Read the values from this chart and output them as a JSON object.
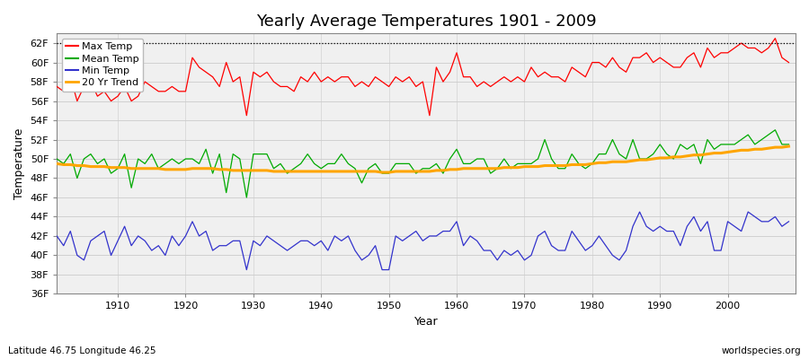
{
  "title": "Yearly Average Temperatures 1901 - 2009",
  "xlabel": "Year",
  "ylabel": "Temperature",
  "subtitle_lat": "Latitude 46.75 Longitude 46.25",
  "watermark": "worldspecies.org",
  "bg_color": "#ffffff",
  "plot_bg_color": "#f0f0f0",
  "years": [
    1901,
    1902,
    1903,
    1904,
    1905,
    1906,
    1907,
    1908,
    1909,
    1910,
    1911,
    1912,
    1913,
    1914,
    1915,
    1916,
    1917,
    1918,
    1919,
    1920,
    1921,
    1922,
    1923,
    1924,
    1925,
    1926,
    1927,
    1928,
    1929,
    1930,
    1931,
    1932,
    1933,
    1934,
    1935,
    1936,
    1937,
    1938,
    1939,
    1940,
    1941,
    1942,
    1943,
    1944,
    1945,
    1946,
    1947,
    1948,
    1949,
    1950,
    1951,
    1952,
    1953,
    1954,
    1955,
    1956,
    1957,
    1958,
    1959,
    1960,
    1961,
    1962,
    1963,
    1964,
    1965,
    1966,
    1967,
    1968,
    1969,
    1970,
    1971,
    1972,
    1973,
    1974,
    1975,
    1976,
    1977,
    1978,
    1979,
    1980,
    1981,
    1982,
    1983,
    1984,
    1985,
    1986,
    1987,
    1988,
    1989,
    1990,
    1991,
    1992,
    1993,
    1994,
    1995,
    1996,
    1997,
    1998,
    1999,
    2000,
    2001,
    2002,
    2003,
    2004,
    2005,
    2006,
    2007,
    2008,
    2009
  ],
  "max_temp": [
    57.5,
    57.0,
    58.5,
    56.0,
    57.5,
    58.0,
    56.5,
    57.0,
    56.0,
    56.5,
    57.5,
    56.0,
    56.5,
    58.0,
    57.5,
    57.0,
    57.0,
    57.5,
    57.0,
    57.0,
    60.5,
    59.5,
    59.0,
    58.5,
    57.5,
    60.0,
    58.0,
    58.5,
    54.5,
    59.0,
    58.5,
    59.0,
    58.0,
    57.5,
    57.5,
    57.0,
    58.5,
    58.0,
    59.0,
    58.0,
    58.5,
    58.0,
    58.5,
    58.5,
    57.5,
    58.0,
    57.5,
    58.5,
    58.0,
    57.5,
    58.5,
    58.0,
    58.5,
    57.5,
    58.0,
    54.5,
    59.5,
    58.0,
    59.0,
    61.0,
    58.5,
    58.5,
    57.5,
    58.0,
    57.5,
    58.0,
    58.5,
    58.0,
    58.5,
    58.0,
    59.5,
    58.5,
    59.0,
    58.5,
    58.5,
    58.0,
    59.5,
    59.0,
    58.5,
    60.0,
    60.0,
    59.5,
    60.5,
    59.5,
    59.0,
    60.5,
    60.5,
    61.0,
    60.0,
    60.5,
    60.0,
    59.5,
    59.5,
    60.5,
    61.0,
    59.5,
    61.5,
    60.5,
    61.0,
    61.0,
    61.5,
    62.0,
    61.5,
    61.5,
    61.0,
    61.5,
    62.5,
    60.5,
    60.0
  ],
  "mean_temp": [
    50.0,
    49.5,
    50.5,
    48.0,
    50.0,
    50.5,
    49.5,
    50.0,
    48.5,
    49.0,
    50.5,
    47.0,
    50.0,
    49.5,
    50.5,
    49.0,
    49.5,
    50.0,
    49.5,
    50.0,
    50.0,
    49.5,
    51.0,
    48.5,
    50.5,
    46.5,
    50.5,
    50.0,
    46.0,
    50.5,
    50.5,
    50.5,
    49.0,
    49.5,
    48.5,
    49.0,
    49.5,
    50.5,
    49.5,
    49.0,
    49.5,
    49.5,
    50.5,
    49.5,
    49.0,
    47.5,
    49.0,
    49.5,
    48.5,
    48.5,
    49.5,
    49.5,
    49.5,
    48.5,
    49.0,
    49.0,
    49.5,
    48.5,
    50.0,
    51.0,
    49.5,
    49.5,
    50.0,
    50.0,
    48.5,
    49.0,
    50.0,
    49.0,
    49.5,
    49.5,
    49.5,
    50.0,
    52.0,
    50.0,
    49.0,
    49.0,
    50.5,
    49.5,
    49.0,
    49.5,
    50.5,
    50.5,
    52.0,
    50.5,
    50.0,
    52.0,
    50.0,
    50.0,
    50.5,
    51.5,
    50.5,
    50.0,
    51.5,
    51.0,
    51.5,
    49.5,
    52.0,
    51.0,
    51.5,
    51.5,
    51.5,
    52.0,
    52.5,
    51.5,
    52.0,
    52.5,
    53.0,
    51.5,
    51.5
  ],
  "min_temp": [
    42.0,
    41.0,
    42.5,
    40.0,
    39.5,
    41.5,
    42.0,
    42.5,
    40.0,
    41.5,
    43.0,
    41.0,
    42.0,
    41.5,
    40.5,
    41.0,
    40.0,
    42.0,
    41.0,
    42.0,
    43.5,
    42.0,
    42.5,
    40.5,
    41.0,
    41.0,
    41.5,
    41.5,
    38.5,
    41.5,
    41.0,
    42.0,
    41.5,
    41.0,
    40.5,
    41.0,
    41.5,
    41.5,
    41.0,
    41.5,
    40.5,
    42.0,
    41.5,
    42.0,
    40.5,
    39.5,
    40.0,
    41.0,
    38.5,
    38.5,
    42.0,
    41.5,
    42.0,
    42.5,
    41.5,
    42.0,
    42.0,
    42.5,
    42.5,
    43.5,
    41.0,
    42.0,
    41.5,
    40.5,
    40.5,
    39.5,
    40.5,
    40.0,
    40.5,
    39.5,
    40.0,
    42.0,
    42.5,
    41.0,
    40.5,
    40.5,
    42.5,
    41.5,
    40.5,
    41.0,
    42.0,
    41.0,
    40.0,
    39.5,
    40.5,
    43.0,
    44.5,
    43.0,
    42.5,
    43.0,
    42.5,
    42.5,
    41.0,
    43.0,
    44.0,
    42.5,
    43.5,
    40.5,
    40.5,
    43.5,
    43.0,
    42.5,
    44.5,
    44.0,
    43.5,
    43.5,
    44.0,
    43.0,
    43.5
  ],
  "trend_values": [
    49.5,
    49.4,
    49.4,
    49.3,
    49.3,
    49.2,
    49.2,
    49.2,
    49.1,
    49.1,
    49.1,
    49.0,
    49.0,
    49.0,
    49.0,
    49.0,
    48.9,
    48.9,
    48.9,
    48.9,
    49.0,
    49.0,
    49.0,
    49.0,
    48.9,
    48.9,
    48.8,
    48.8,
    48.8,
    48.8,
    48.8,
    48.8,
    48.7,
    48.7,
    48.7,
    48.7,
    48.7,
    48.7,
    48.7,
    48.7,
    48.7,
    48.7,
    48.7,
    48.7,
    48.7,
    48.7,
    48.7,
    48.7,
    48.6,
    48.6,
    48.7,
    48.7,
    48.7,
    48.7,
    48.7,
    48.7,
    48.8,
    48.8,
    48.9,
    48.9,
    49.0,
    49.0,
    49.0,
    49.0,
    49.0,
    49.0,
    49.1,
    49.1,
    49.1,
    49.2,
    49.2,
    49.2,
    49.3,
    49.3,
    49.3,
    49.3,
    49.4,
    49.4,
    49.4,
    49.5,
    49.6,
    49.6,
    49.7,
    49.7,
    49.7,
    49.8,
    49.9,
    49.9,
    50.0,
    50.1,
    50.1,
    50.2,
    50.2,
    50.3,
    50.4,
    50.4,
    50.5,
    50.6,
    50.6,
    50.7,
    50.8,
    50.9,
    50.9,
    51.0,
    51.0,
    51.1,
    51.2,
    51.2,
    51.3
  ],
  "ylim": [
    36,
    63
  ],
  "yticks": [
    36,
    38,
    40,
    42,
    44,
    46,
    48,
    50,
    52,
    54,
    56,
    58,
    60,
    62
  ],
  "xlim": [
    1901,
    2010
  ],
  "xticks": [
    1910,
    1920,
    1930,
    1940,
    1950,
    1960,
    1970,
    1980,
    1990,
    2000
  ],
  "dotted_line_y": 62,
  "max_color": "#ff0000",
  "mean_color": "#00aa00",
  "min_color": "#3333cc",
  "trend_color": "#ffa500",
  "grid_color": "#cccccc",
  "title_fontsize": 13,
  "axis_fontsize": 9,
  "tick_fontsize": 8,
  "legend_fontsize": 8
}
